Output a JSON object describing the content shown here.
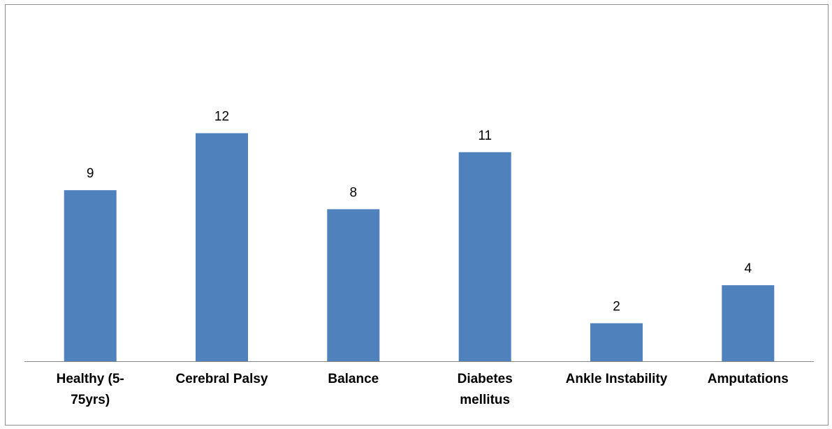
{
  "chart_data": {
    "type": "bar",
    "categories": [
      [
        "Healthy (5-",
        "75yrs)"
      ],
      [
        "Cerebral Palsy"
      ],
      [
        "Balance"
      ],
      [
        "Diabetes",
        "mellitus"
      ],
      [
        "Ankle Instability"
      ],
      [
        "Amputations"
      ]
    ],
    "values": [
      9,
      12,
      8,
      11,
      2,
      4
    ],
    "data_labels": [
      "9",
      "12",
      "8",
      "11",
      "2",
      "4"
    ],
    "title": "",
    "xlabel": "",
    "ylabel": "",
    "ylim": [
      0,
      13.3
    ],
    "grid": false,
    "legend": "none",
    "bar_color": "#4F81BD",
    "axis_color": "#868686"
  }
}
